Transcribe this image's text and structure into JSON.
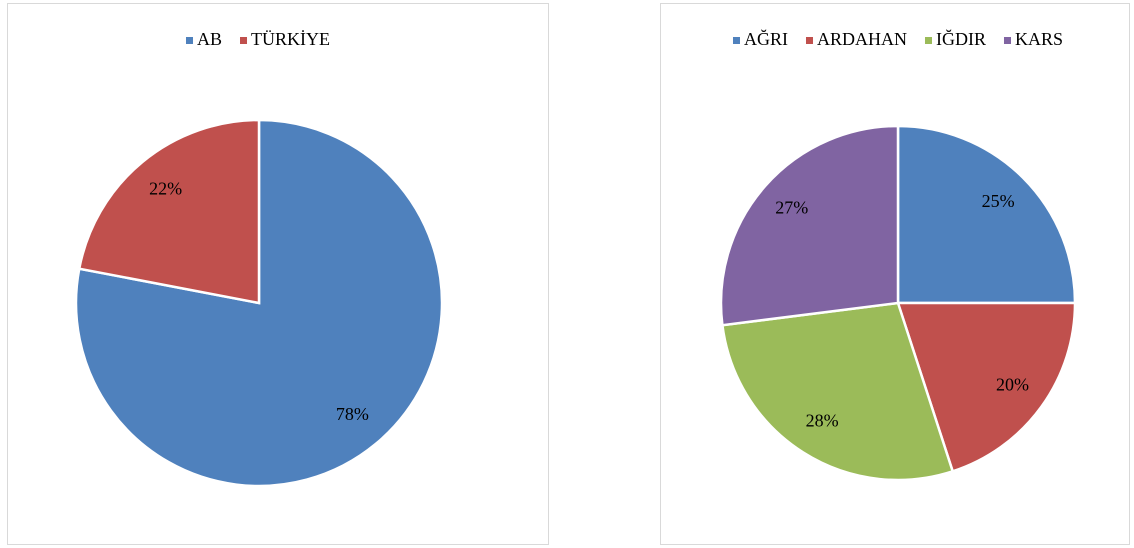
{
  "chart_data": [
    {
      "type": "pie",
      "categories": [
        "AB",
        "TÜRKİYE"
      ],
      "values": [
        78,
        22
      ],
      "value_labels": [
        "78%",
        "22%"
      ],
      "colors": [
        "#4f81bd",
        "#c0504d"
      ],
      "legend": "top"
    },
    {
      "type": "pie",
      "categories": [
        "AĞRI",
        "ARDAHAN",
        "IĞDIR",
        "KARS"
      ],
      "values": [
        25,
        20,
        28,
        27
      ],
      "value_labels": [
        "25%",
        "20%",
        "28%",
        "27%"
      ],
      "colors": [
        "#4f81bd",
        "#c0504d",
        "#9bbb59",
        "#8064a2"
      ],
      "legend": "top"
    }
  ]
}
